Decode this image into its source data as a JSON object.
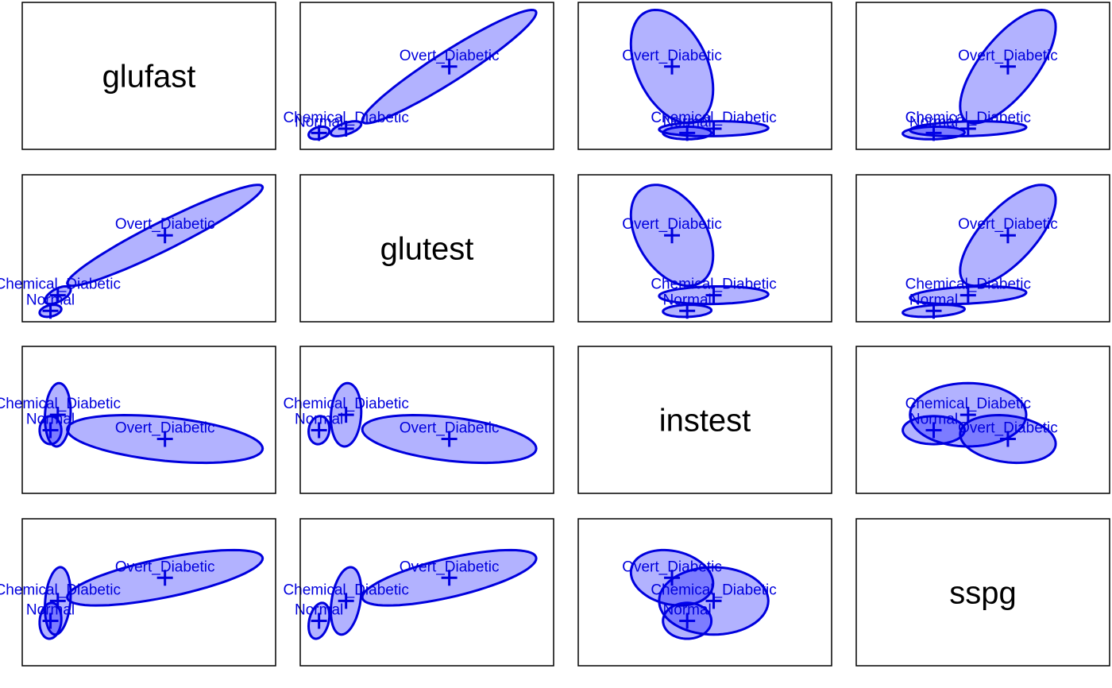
{
  "chart_data": {
    "type": "scatter-matrix-ellipses",
    "variables": [
      "glufast",
      "glutest",
      "instest",
      "sspg"
    ],
    "groups": [
      "Normal",
      "Chemical_Diabetic",
      "Overt_Diabetic"
    ],
    "colors": {
      "stroke": "#0000dd",
      "fill": "#0000ff",
      "fill_opacity": 0.3,
      "label": "#0000dd",
      "diagonal_label": "#000000",
      "frame": "#000000"
    },
    "ranges": {
      "glufast": [
        60,
        340
      ],
      "glutest": [
        250,
        1600
      ],
      "instest": [
        -300,
        800
      ],
      "sspg": [
        -100,
        600
      ]
    },
    "stats": {
      "Normal": {
        "mean": {
          "glufast": 91.2,
          "glutest": 350,
          "instest": 173,
          "sspg": 114
        },
        "sd": {
          "glufast": 8.0,
          "glutest": 37,
          "instest": 70,
          "sspg": 57
        },
        "corr": {
          "glufast|glutest": 0.3,
          "glufast|instest": 0.0,
          "glufast|sspg": 0.1,
          "glutest|instest": 0.1,
          "glutest|sspg": 0.3,
          "instest|sspg": 0.0
        }
      },
      "Chemical_Diabetic": {
        "mean": {
          "glufast": 99.3,
          "glutest": 494,
          "instest": 288,
          "sspg": 209
        },
        "sd": {
          "glufast": 9.5,
          "glutest": 54,
          "instest": 158,
          "sspg": 107
        },
        "corr": {
          "glufast|glutest": 0.6,
          "glufast|instest": 0.1,
          "glufast|sspg": 0.2,
          "glutest|instest": 0.1,
          "glutest|sspg": 0.3,
          "instest|sspg": 0.0
        }
      },
      "Overt_Diabetic": {
        "mean": {
          "glufast": 217.7,
          "glutest": 1044,
          "instest": 107,
          "sspg": 319
        },
        "sd": {
          "glufast": 72,
          "glutest": 309,
          "instest": 119,
          "sspg": 88
        },
        "corr": {
          "glufast|glutest": 0.95,
          "glufast|instest": -0.4,
          "glufast|sspg": 0.7,
          "glutest|instest": -0.4,
          "glutest|sspg": 0.7,
          "instest|sspg": -0.2
        }
      }
    },
    "ellipse_scale": 1.5
  }
}
